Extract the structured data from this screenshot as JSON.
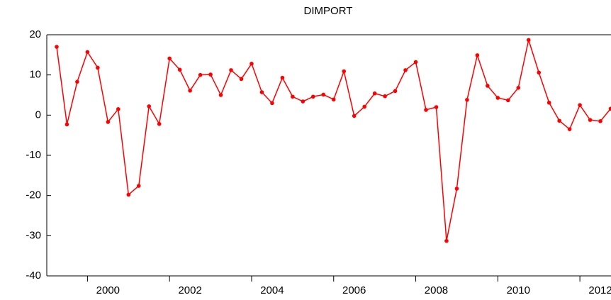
{
  "chart_data": {
    "type": "line",
    "title": "DIMPORT",
    "x": [
      1999.25,
      1999.5,
      1999.75,
      2000,
      2000.25,
      2000.5,
      2000.75,
      2001,
      2001.25,
      2001.5,
      2001.75,
      2002,
      2002.25,
      2002.5,
      2002.75,
      2003,
      2003.25,
      2003.5,
      2003.75,
      2004,
      2004.25,
      2004.5,
      2004.75,
      2005,
      2005.25,
      2005.5,
      2005.75,
      2006,
      2006.25,
      2006.5,
      2006.75,
      2007,
      2007.25,
      2007.5,
      2007.75,
      2008,
      2008.25,
      2008.5,
      2008.75,
      2009,
      2009.25,
      2009.5,
      2009.75,
      2010,
      2010.25,
      2010.5,
      2010.75,
      2011,
      2011.25,
      2011.5,
      2011.75,
      2012,
      2012.25,
      2012.5,
      2012.75
    ],
    "series": [
      {
        "name": "DIMPORT",
        "color": "#ff0000",
        "values": [
          17,
          -2.3,
          8.3,
          15.7,
          11.8,
          -1.7,
          1.5,
          -19.8,
          -17.6,
          2.2,
          -2.2,
          14.1,
          11.3,
          6.1,
          10,
          10.1,
          5,
          11.2,
          9,
          12.8,
          5.7,
          3,
          9.3,
          4.6,
          3.4,
          4.6,
          5.1,
          3.9,
          10.9,
          -0.2,
          2.1,
          5.4,
          4.7,
          6,
          11.2,
          13.2,
          1.3,
          2,
          -31.3,
          -18.3,
          3.8,
          14.9,
          7.3,
          4.3,
          3.7,
          6.8,
          18.7,
          10.6,
          3.1,
          -1.4,
          -3.5,
          2.5,
          -1.2,
          -1.5,
          1.6
        ]
      }
    ],
    "xlim": [
      1999,
      2013
    ],
    "xticks": [
      2000,
      2002,
      2004,
      2006,
      2008,
      2010,
      2012
    ],
    "ylim": [
      -40,
      20
    ],
    "yticks": [
      -40,
      -30,
      -20,
      -10,
      0,
      10,
      20
    ]
  }
}
